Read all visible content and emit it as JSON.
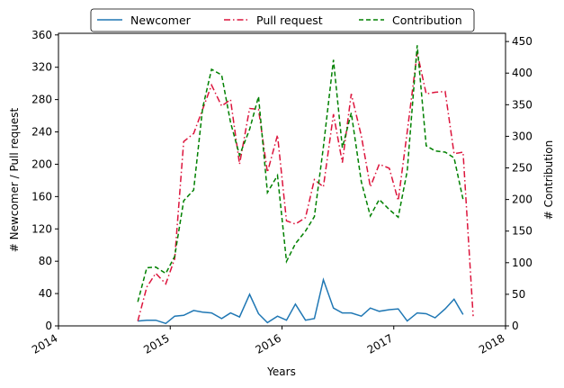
{
  "chart_data": {
    "type": "line",
    "title": "",
    "xlabel": "Years",
    "ylabel_left": "# Newcomer / Pull request",
    "ylabel_right": "# Contribution",
    "x_ticks": [
      "2014",
      "2015",
      "2016",
      "2017",
      "2018"
    ],
    "x_range": [
      2014.0,
      2018.0
    ],
    "ylim_left": [
      0,
      362
    ],
    "ylim_right": [
      0,
      463
    ],
    "yticks_left": [
      0,
      40,
      80,
      120,
      160,
      200,
      240,
      280,
      320,
      360
    ],
    "yticks_right": [
      0,
      50,
      100,
      150,
      200,
      250,
      300,
      350,
      400,
      450
    ],
    "grid": false,
    "legend_placement": "top-center",
    "x": [
      2014.71,
      2014.79,
      2014.87,
      2014.96,
      2015.04,
      2015.12,
      2015.21,
      2015.29,
      2015.37,
      2015.46,
      2015.54,
      2015.62,
      2015.71,
      2015.79,
      2015.87,
      2015.96,
      2016.04,
      2016.12,
      2016.21,
      2016.29,
      2016.37,
      2016.46,
      2016.54,
      2016.62,
      2016.71,
      2016.79,
      2016.87,
      2016.96,
      2017.04,
      2017.12,
      2017.21,
      2017.29,
      2017.37,
      2017.46,
      2017.54,
      2017.62,
      2017.71
    ],
    "series": [
      {
        "name": "Newcomer",
        "axis": "left",
        "color": "#1f77b4",
        "style": "solid",
        "values": [
          6,
          7,
          7,
          3,
          12,
          13,
          19,
          17,
          16,
          9,
          16,
          11,
          39,
          15,
          4,
          12,
          7,
          27,
          7,
          9,
          57,
          22,
          16,
          16,
          12,
          22,
          18,
          20,
          21,
          6,
          16,
          15,
          10,
          21,
          33,
          14,
          null
        ]
      },
      {
        "name": "Pull request",
        "axis": "left",
        "color": "#dc143c",
        "style": "dashdot",
        "values": [
          6,
          48,
          65,
          52,
          83,
          228,
          238,
          268,
          298,
          272,
          280,
          200,
          269,
          268,
          190,
          236,
          130,
          126,
          134,
          181,
          172,
          262,
          202,
          287,
          235,
          172,
          200,
          195,
          155,
          240,
          338,
          287,
          289,
          290,
          213,
          215,
          12
        ]
      },
      {
        "name": "Contribution",
        "axis": "right",
        "color": "#008000",
        "style": "dashed",
        "values": [
          38,
          92,
          93,
          83,
          110,
          198,
          215,
          345,
          406,
          397,
          322,
          270,
          311,
          363,
          211,
          238,
          102,
          130,
          150,
          173,
          283,
          421,
          282,
          337,
          228,
          174,
          200,
          184,
          172,
          245,
          444,
          285,
          277,
          275,
          266,
          200,
          null
        ]
      }
    ]
  }
}
